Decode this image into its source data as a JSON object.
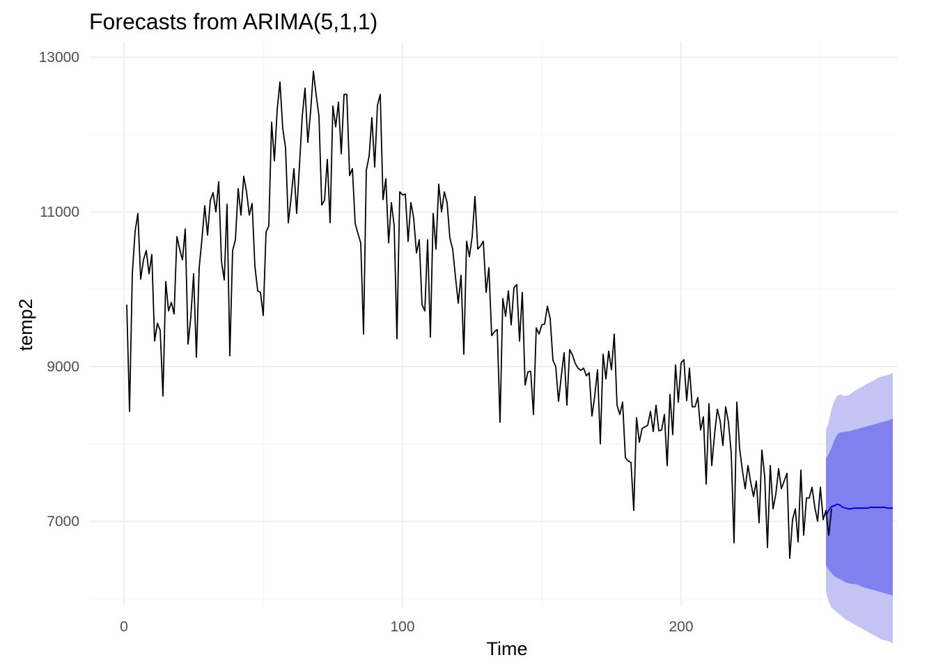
{
  "chart_data": {
    "type": "line",
    "title": "Forecasts from ARIMA(5,1,1)",
    "xlabel": "Time",
    "ylabel": "temp2",
    "xlim": [
      -12.5,
      277.5
    ],
    "ylim": [
      5900,
      13200
    ],
    "x_ticks": [
      {
        "value": 0,
        "label": "0"
      },
      {
        "value": 100,
        "label": "100"
      },
      {
        "value": 200,
        "label": "200"
      }
    ],
    "y_ticks": [
      {
        "value": 7000,
        "label": "7000"
      },
      {
        "value": 9000,
        "label": "9000"
      },
      {
        "value": 11000,
        "label": "11000"
      },
      {
        "value": 13000,
        "label": "13000"
      }
    ],
    "grid": true,
    "legend": "none",
    "colors": {
      "observed": "#000000",
      "forecast_mean": "#0000cc",
      "band_80": "#8080ee",
      "band_95": "#c4c4f4"
    },
    "series": [
      {
        "role": "observed",
        "x_start": 1,
        "values": [
          9800,
          8420,
          10200,
          10750,
          10980,
          10130,
          10380,
          10500,
          10200,
          10450,
          9330,
          9560,
          9470,
          8620,
          10100,
          9720,
          9830,
          9680,
          10680,
          10520,
          10380,
          10780,
          9290,
          9640,
          10200,
          9120,
          10280,
          10650,
          11080,
          10700,
          11150,
          11250,
          11000,
          11390,
          10360,
          10120,
          11100,
          9140,
          10500,
          10640,
          11300,
          10960,
          11460,
          11260,
          10960,
          11110,
          10300,
          9980,
          9960,
          9660,
          10740,
          10820,
          12160,
          11660,
          12320,
          12680,
          12080,
          11830,
          10860,
          11180,
          11560,
          10980,
          11600,
          12240,
          12600,
          11900,
          12300,
          12820,
          12510,
          12240,
          11090,
          11150,
          11680,
          10860,
          12370,
          12100,
          12420,
          11750,
          12520,
          12520,
          11470,
          11560,
          10850,
          10720,
          10600,
          9420,
          11540,
          11720,
          12220,
          11580,
          12380,
          12520,
          11160,
          11430,
          10600,
          11120,
          10820,
          9360,
          11260,
          11220,
          11230,
          10620,
          11120,
          10920,
          10470,
          10640,
          9800,
          9720,
          10640,
          9380,
          10980,
          10520,
          11360,
          11000,
          11260,
          11120,
          10660,
          10520,
          10160,
          9820,
          10180,
          9160,
          10620,
          10420,
          10680,
          11200,
          10520,
          10560,
          10620,
          9960,
          10280,
          9400,
          9450,
          9480,
          8280,
          9880,
          9650,
          9980,
          9540,
          10020,
          10060,
          9330,
          9960,
          8760,
          8930,
          8940,
          8380,
          9500,
          9420,
          9540,
          9550,
          9780,
          9620,
          9080,
          9000,
          8550,
          8880,
          9180,
          8500,
          9220,
          9150,
          9040,
          8980,
          8950,
          8980,
          8880,
          8920,
          8360,
          8620,
          8960,
          8000,
          9160,
          8840,
          9200,
          8960,
          9420,
          8500,
          8380,
          8540,
          7820,
          7780,
          7760,
          7140,
          8340,
          8020,
          8200,
          8220,
          8240,
          8420,
          8160,
          8500,
          8170,
          8180,
          8380,
          7720,
          8640,
          8120,
          9020,
          8540,
          9050,
          9090,
          8560,
          8980,
          8480,
          8480,
          8600,
          8180,
          8350,
          7480,
          8520,
          7720,
          8120,
          8450,
          8300,
          7980,
          8480,
          8280,
          7880,
          6720,
          8540,
          7940,
          7660,
          7420,
          7720,
          7500,
          7320,
          7520,
          6980,
          7920,
          7580,
          6660,
          7720,
          7160,
          7350,
          7680,
          7420,
          7520,
          7620,
          6520,
          7020,
          7160,
          6730,
          7660,
          6820,
          7300,
          7300,
          7440,
          7180,
          7000,
          7440,
          7020,
          7140,
          6820,
          7160
        ]
      },
      {
        "role": "forecast_mean",
        "x_start": 252,
        "values": [
          7070,
          7140,
          7190,
          7200,
          7220,
          7210,
          7180,
          7170,
          7160,
          7160,
          7170,
          7170,
          7170,
          7170,
          7170,
          7170,
          7180,
          7180,
          7180,
          7180,
          7180,
          7180,
          7170,
          7170,
          7170
        ]
      },
      {
        "role": "band_80",
        "x_start": 252,
        "lower": [
          6430,
          6370,
          6330,
          6290,
          6270,
          6250,
          6230,
          6210,
          6200,
          6190,
          6190,
          6180,
          6170,
          6150,
          6140,
          6130,
          6120,
          6110,
          6100,
          6090,
          6080,
          6070,
          6060,
          6050,
          6040
        ],
        "upper": [
          7810,
          7870,
          7950,
          8050,
          8120,
          8150,
          8150,
          8160,
          8160,
          8170,
          8180,
          8190,
          8200,
          8210,
          8220,
          8230,
          8240,
          8250,
          8260,
          8270,
          8280,
          8290,
          8300,
          8310,
          8330
        ]
      },
      {
        "role": "band_95",
        "x_start": 252,
        "lower": [
          6080,
          5960,
          5880,
          5850,
          5820,
          5790,
          5760,
          5730,
          5710,
          5690,
          5670,
          5650,
          5630,
          5610,
          5590,
          5570,
          5550,
          5530,
          5510,
          5490,
          5470,
          5460,
          5450,
          5440,
          5420
        ],
        "upper": [
          8180,
          8280,
          8450,
          8560,
          8620,
          8640,
          8630,
          8620,
          8630,
          8650,
          8680,
          8700,
          8720,
          8740,
          8760,
          8780,
          8800,
          8820,
          8840,
          8860,
          8870,
          8880,
          8890,
          8900,
          8920
        ]
      }
    ]
  }
}
